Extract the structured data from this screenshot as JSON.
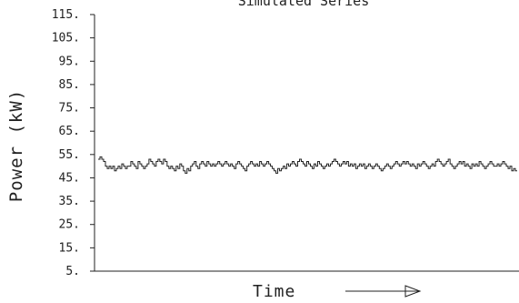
{
  "chart_data": {
    "type": "line",
    "title": "Simulated Series",
    "xlabel": "Time",
    "ylabel": "Power (kW)",
    "ylim": [
      5,
      115
    ],
    "yticks": [
      "115.",
      "105.",
      "95.",
      "85.",
      "75.",
      "65.",
      "55.",
      "45.",
      "35.",
      "25.",
      "15.",
      "5."
    ],
    "ytick_values": [
      115,
      105,
      95,
      85,
      75,
      65,
      55,
      45,
      35,
      25,
      15,
      5
    ],
    "grid": false,
    "xlim": [
      0,
      230
    ],
    "series": [
      {
        "values": [
          53,
          54,
          53,
          52,
          50,
          49,
          50,
          49,
          50,
          48,
          49,
          50,
          49,
          51,
          50,
          49,
          50,
          50,
          52,
          51,
          50,
          49,
          52,
          51,
          50,
          49,
          50,
          51,
          53,
          52,
          51,
          50,
          52,
          53,
          52,
          51,
          53,
          52,
          50,
          49,
          50,
          49,
          48,
          50,
          49,
          51,
          50,
          48,
          47,
          49,
          48,
          50,
          51,
          52,
          50,
          49,
          51,
          52,
          51,
          50,
          52,
          51,
          50,
          51,
          50,
          51,
          52,
          51,
          50,
          51,
          52,
          51,
          50,
          51,
          50,
          49,
          51,
          52,
          51,
          50,
          49,
          48,
          50,
          51,
          52,
          51,
          50,
          51,
          50,
          52,
          51,
          50,
          51,
          52,
          51,
          50,
          49,
          48,
          47,
          49,
          48,
          49,
          50,
          49,
          51,
          50,
          51,
          52,
          51,
          50,
          52,
          53,
          52,
          51,
          50,
          52,
          51,
          50,
          49,
          51,
          50,
          52,
          51,
          50,
          49,
          50,
          51,
          50,
          51,
          52,
          53,
          52,
          51,
          50,
          51,
          52,
          51,
          52,
          50,
          51,
          50,
          51,
          49,
          50,
          51,
          50,
          51,
          49,
          50,
          51,
          50,
          49,
          50,
          51,
          50,
          49,
          48,
          49,
          50,
          51,
          50,
          49,
          50,
          51,
          52,
          51,
          50,
          51,
          52,
          51,
          52,
          51,
          50,
          51,
          50,
          49,
          51,
          50,
          51,
          52,
          51,
          50,
          49,
          50,
          51,
          50,
          52,
          53,
          52,
          51,
          50,
          51,
          52,
          53,
          51,
          50,
          49,
          50,
          51,
          52,
          51,
          52,
          50,
          51,
          50,
          49,
          51,
          50,
          51,
          50,
          52,
          51,
          50,
          49,
          50,
          51,
          52,
          51,
          50,
          50,
          51,
          50,
          51,
          52,
          51,
          50,
          49,
          50,
          48,
          49,
          48
        ]
      }
    ]
  }
}
